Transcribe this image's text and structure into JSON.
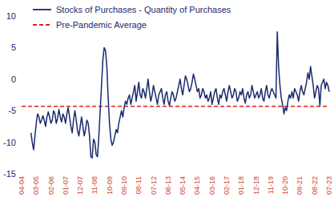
{
  "chart_data": {
    "type": "line",
    "categories": [
      "04-04",
      null,
      null,
      null,
      null,
      null,
      null,
      null,
      null,
      null,
      null,
      "03-05",
      null,
      null,
      null,
      null,
      null,
      null,
      null,
      null,
      null,
      null,
      "02-06",
      null,
      null,
      null,
      null,
      null,
      null,
      null,
      null,
      null,
      null,
      "01-07",
      null,
      null,
      null,
      null,
      null,
      null,
      null,
      null,
      null,
      null,
      "12-07",
      null,
      null,
      null,
      null,
      null,
      null,
      null,
      null,
      null,
      null,
      "11-08",
      null,
      null,
      null,
      null,
      null,
      null,
      null,
      null,
      null,
      null,
      "10-09",
      null,
      null,
      null,
      null,
      null,
      null,
      null,
      null,
      null,
      null,
      "09-10",
      null,
      null,
      null,
      null,
      null,
      null,
      null,
      null,
      null,
      null,
      "08-11",
      null,
      null,
      null,
      null,
      null,
      null,
      null,
      null,
      null,
      null,
      "07-12",
      null,
      null,
      null,
      null,
      null,
      null,
      null,
      null,
      null,
      null,
      "06-13",
      null,
      null,
      null,
      null,
      null,
      null,
      null,
      null,
      null,
      null,
      "05-14",
      null,
      null,
      null,
      null,
      null,
      null,
      null,
      null,
      null,
      null,
      "04-15",
      null,
      null,
      null,
      null,
      null,
      null,
      null,
      null,
      null,
      null,
      "03-16",
      null,
      null,
      null,
      null,
      null,
      null,
      null,
      null,
      null,
      null,
      "02-17",
      null,
      null,
      null,
      null,
      null,
      null,
      null,
      null,
      null,
      null,
      "01-18",
      null,
      null,
      null,
      null,
      null,
      null,
      null,
      null,
      null,
      null,
      "12-18",
      null,
      null,
      null,
      null,
      null,
      null,
      null,
      null,
      null,
      null,
      "11-19",
      null,
      null,
      null,
      null,
      null,
      null,
      null,
      null,
      null,
      null,
      "10-20",
      null,
      null,
      null,
      null,
      null,
      null,
      null,
      null,
      null,
      null,
      "09-21",
      null,
      null,
      null,
      null,
      null,
      null,
      null,
      null,
      null,
      null,
      "08-22",
      null,
      null,
      null,
      null,
      null,
      null,
      null,
      null,
      null,
      null,
      "07-23"
    ],
    "series": [
      {
        "name": "Stocks of Purchases - Quantity of Purchases",
        "color": "#1b2a6b",
        "line_style": "solid",
        "values": [
          null,
          null,
          null,
          null,
          null,
          null,
          null,
          -8.5,
          -10,
          -11.2,
          -9,
          -7,
          -5.5,
          -6,
          -7,
          -6.5,
          -5.8,
          -6.5,
          -7.5,
          -6,
          -5.2,
          -6,
          -7,
          -6.5,
          -5,
          -5.5,
          -7,
          -6.2,
          -4.8,
          -6,
          -6.8,
          -5.5,
          -6,
          -7,
          -5.5,
          -4.5,
          -6,
          -7.5,
          -8.5,
          -6.5,
          -5,
          -6.5,
          -8.2,
          -9,
          -7.5,
          -6,
          -7.5,
          -9,
          -8,
          -6.5,
          -7,
          -9,
          -12.3,
          -12.5,
          -9.5,
          -10,
          -12,
          -12.3,
          -9,
          -5,
          -1,
          3,
          5,
          4.5,
          2,
          -3,
          -7,
          -9.5,
          -10.5,
          -10,
          -9,
          -8,
          -8.5,
          -7,
          -6,
          -5,
          -6,
          -4.5,
          -3.5,
          -4,
          -3,
          -2.5,
          -4,
          -3,
          -2,
          -1,
          -3.5,
          -2,
          -0.5,
          -2.5,
          -3,
          -1.5,
          -2,
          -3,
          -1.5,
          0,
          -2,
          -3.5,
          -2.5,
          -1,
          -2,
          -3,
          -4,
          -2.5,
          -2,
          -1.5,
          -3,
          -4,
          -2.5,
          -2,
          -3.5,
          -4.2,
          -3,
          -2,
          -2.5,
          -3.5,
          -3,
          -2,
          -1,
          0,
          -1.5,
          -2.5,
          -1,
          0.5,
          0,
          -1,
          -2,
          -1.5,
          -0.5,
          0.8,
          0,
          -1,
          -2,
          -1.5,
          -3,
          -2.5,
          -1.5,
          -2,
          -3,
          -2.5,
          -3.5,
          -3,
          -2,
          -4,
          -3,
          -2,
          -1.5,
          -3,
          -4,
          -2.5,
          -3,
          -2,
          -1.5,
          -2.5,
          -3.5,
          -2,
          -1,
          -2,
          -3,
          -2.5,
          -1.5,
          -2,
          -3.5,
          -3,
          -2,
          -2.5,
          -1.5,
          -3,
          -3.8,
          -2.5,
          -2,
          -3,
          -2.5,
          -1,
          -2,
          -3,
          -2.5,
          -2,
          -3,
          -2.5,
          -1.5,
          -3,
          -3.5,
          -2,
          -1,
          -2.5,
          -3,
          -2,
          -1.5,
          -2,
          -2.5,
          -3,
          7.5,
          2,
          -1,
          -3,
          -4,
          -5.5,
          -4.5,
          -5,
          -3.5,
          -2.5,
          -3,
          -2,
          -3,
          -1.5,
          -2,
          -2.5,
          -3.5,
          -2,
          -1,
          -2,
          -2.5,
          -1.5,
          -0.5,
          1,
          0,
          2,
          0.5,
          -1,
          -3,
          -2,
          -1,
          -1.5,
          -4.2,
          -1,
          -0.5,
          0,
          -1.5,
          -0.5,
          -1,
          -2
        ]
      },
      {
        "name": "Pre-Pandemic Average",
        "color": "#e0201b",
        "line_style": "dashed",
        "values": [
          -4.3,
          -4.3,
          -4.3,
          -4.3,
          -4.3,
          -4.3,
          -4.3,
          -4.3,
          -4.3,
          -4.3,
          -4.3,
          -4.3,
          -4.3,
          -4.3,
          -4.3,
          -4.3,
          -4.3,
          -4.3,
          -4.3,
          -4.3,
          -4.3,
          -4.3,
          -4.3,
          -4.3,
          -4.3,
          -4.3,
          -4.3,
          -4.3,
          -4.3,
          -4.3,
          -4.3,
          -4.3,
          -4.3,
          -4.3,
          -4.3,
          -4.3,
          -4.3,
          -4.3,
          -4.3,
          -4.3,
          -4.3,
          -4.3,
          -4.3,
          -4.3,
          -4.3,
          -4.3,
          -4.3,
          -4.3,
          -4.3,
          -4.3,
          -4.3,
          -4.3,
          -4.3,
          -4.3,
          -4.3,
          -4.3,
          -4.3,
          -4.3,
          -4.3,
          -4.3,
          -4.3,
          -4.3,
          -4.3,
          -4.3,
          -4.3,
          -4.3,
          -4.3,
          -4.3,
          -4.3,
          -4.3,
          -4.3,
          -4.3,
          -4.3,
          -4.3,
          -4.3,
          -4.3,
          -4.3,
          -4.3,
          -4.3,
          -4.3,
          -4.3,
          -4.3,
          -4.3,
          -4.3,
          -4.3,
          -4.3,
          -4.3,
          -4.3,
          -4.3,
          -4.3,
          -4.3,
          -4.3,
          -4.3,
          -4.3,
          -4.3,
          -4.3,
          -4.3,
          -4.3,
          -4.3,
          -4.3,
          -4.3,
          -4.3,
          -4.3,
          -4.3,
          -4.3,
          -4.3,
          -4.3,
          -4.3,
          -4.3,
          -4.3,
          -4.3,
          -4.3,
          -4.3,
          -4.3,
          -4.3,
          -4.3,
          -4.3,
          -4.3,
          -4.3,
          -4.3,
          -4.3,
          -4.3,
          -4.3,
          -4.3,
          -4.3,
          -4.3,
          -4.3,
          -4.3,
          -4.3,
          -4.3,
          -4.3,
          -4.3,
          -4.3,
          -4.3,
          -4.3,
          -4.3,
          -4.3,
          -4.3,
          -4.3,
          -4.3,
          -4.3,
          -4.3,
          -4.3,
          -4.3,
          -4.3,
          -4.3,
          -4.3,
          -4.3,
          -4.3,
          -4.3,
          -4.3,
          -4.3,
          -4.3,
          -4.3,
          -4.3,
          -4.3,
          -4.3,
          -4.3,
          -4.3,
          -4.3,
          -4.3,
          -4.3,
          -4.3,
          -4.3,
          -4.3,
          -4.3,
          -4.3,
          -4.3,
          -4.3,
          -4.3,
          -4.3,
          -4.3,
          -4.3,
          -4.3,
          -4.3,
          -4.3,
          -4.3,
          -4.3,
          -4.3,
          -4.3,
          -4.3,
          -4.3,
          -4.3,
          -4.3,
          -4.3,
          -4.3,
          -4.3,
          -4.3,
          -4.3,
          -4.3,
          -4.3,
          -4.3,
          -4.3,
          -4.3,
          -4.3,
          -4.3,
          -4.3,
          -4.3,
          -4.3,
          -4.3,
          -4.3,
          -4.3,
          -4.3,
          -4.3,
          -4.3,
          -4.3,
          -4.3,
          -4.3,
          -4.3,
          -4.3,
          -4.3,
          -4.3,
          -4.3,
          -4.3,
          -4.3,
          -4.3,
          -4.3,
          -4.3,
          -4.3,
          -4.3,
          -4.3,
          -4.3,
          -4.3,
          -4.3,
          -4.3,
          -4.3,
          -4.3,
          -4.3,
          -4.3,
          -4.3,
          -4.3,
          -4.3
        ]
      }
    ],
    "ylim": [
      -15,
      10
    ],
    "yticks": [
      -15,
      -10,
      -5,
      0,
      5,
      10
    ],
    "grid": false,
    "legend": "upper-left"
  }
}
